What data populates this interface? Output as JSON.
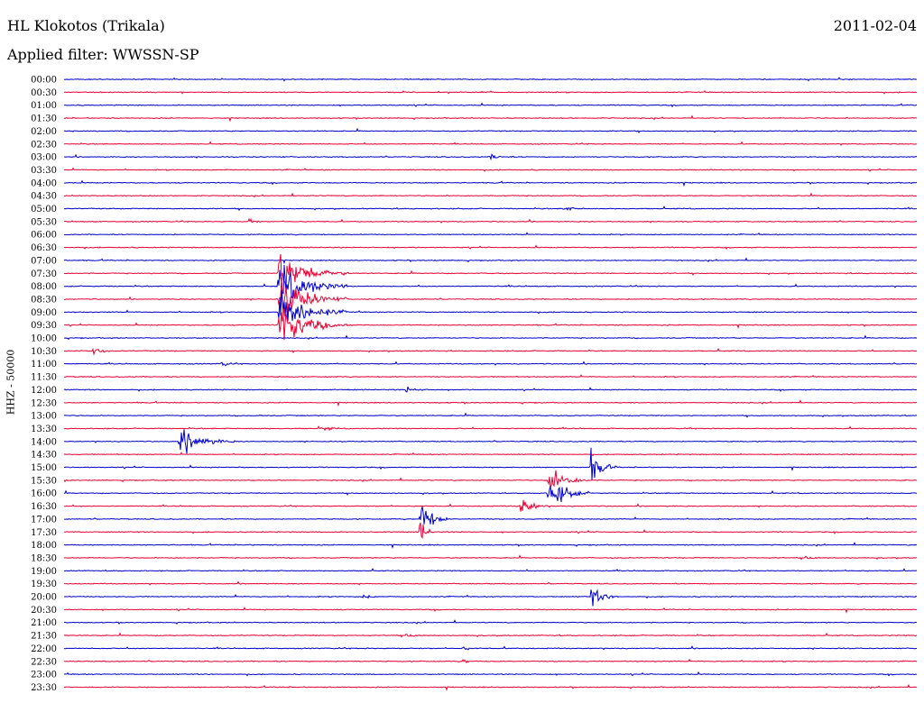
{
  "header": {
    "station": "HL Klokotos (Trikala)",
    "date": "2011-02-04",
    "filter": "Applied filter: WWSSN-SP",
    "channel": "HHZ - 50000"
  },
  "colors": {
    "even_hour": "#0000cc",
    "half_hour": "#ee0033",
    "background": "#ffffff"
  },
  "chart_data": {
    "type": "line",
    "title": "HL Klokotos (Trikala)",
    "date": "2011-02-04",
    "filter": "WWSSN-SP",
    "ylabel": "HHZ - 50000",
    "row_labels": [
      "00:00",
      "00:30",
      "01:00",
      "01:30",
      "02:00",
      "02:30",
      "03:00",
      "03:30",
      "04:00",
      "04:30",
      "05:00",
      "05:30",
      "06:00",
      "06:30",
      "07:00",
      "07:30",
      "08:00",
      "08:30",
      "09:00",
      "09:30",
      "10:00",
      "10:30",
      "11:00",
      "11:30",
      "12:00",
      "12:30",
      "13:00",
      "13:30",
      "14:00",
      "14:30",
      "15:00",
      "15:30",
      "16:00",
      "16:30",
      "17:00",
      "17:30",
      "18:00",
      "18:30",
      "19:00",
      "19:30",
      "20:00",
      "20:30",
      "21:00",
      "21:30",
      "22:00",
      "22:30",
      "23:00",
      "23:30"
    ],
    "row_minutes": 30,
    "events": [
      {
        "row": 15,
        "minute": 7.5,
        "amplitude": 1.0,
        "duration": 2.5
      },
      {
        "row": 16,
        "minute": 7.5,
        "amplitude": 1.0,
        "duration": 2.5
      },
      {
        "row": 17,
        "minute": 7.5,
        "amplitude": 1.0,
        "duration": 2.5
      },
      {
        "row": 18,
        "minute": 7.5,
        "amplitude": 1.0,
        "duration": 2.5
      },
      {
        "row": 19,
        "minute": 7.5,
        "amplitude": 1.0,
        "duration": 2.5
      },
      {
        "row": 28,
        "minute": 4.0,
        "amplitude": 0.6,
        "duration": 2.0
      },
      {
        "row": 30,
        "minute": 18.5,
        "amplitude": 0.7,
        "duration": 1.0
      },
      {
        "row": 31,
        "minute": 17.0,
        "amplitude": 0.7,
        "duration": 1.5
      },
      {
        "row": 32,
        "minute": 17.0,
        "amplitude": 0.8,
        "duration": 1.5
      },
      {
        "row": 33,
        "minute": 16.0,
        "amplitude": 0.5,
        "duration": 1.0
      },
      {
        "row": 34,
        "minute": 12.5,
        "amplitude": 1.0,
        "duration": 1.0
      },
      {
        "row": 35,
        "minute": 12.5,
        "amplitude": 0.8,
        "duration": 0.5
      },
      {
        "row": 40,
        "minute": 18.5,
        "amplitude": 0.5,
        "duration": 1.0
      },
      {
        "row": 6,
        "minute": 15.0,
        "amplitude": 0.15,
        "duration": 0.8
      },
      {
        "row": 10,
        "minute": 17.5,
        "amplitude": 0.15,
        "duration": 0.8
      },
      {
        "row": 11,
        "minute": 6.5,
        "amplitude": 0.25,
        "duration": 0.4
      },
      {
        "row": 21,
        "minute": 1.0,
        "amplitude": 0.25,
        "duration": 0.6
      },
      {
        "row": 22,
        "minute": 5.5,
        "amplitude": 0.15,
        "duration": 0.6
      },
      {
        "row": 24,
        "minute": 12.0,
        "amplitude": 0.15,
        "duration": 0.8
      },
      {
        "row": 27,
        "minute": 9.0,
        "amplitude": 0.12,
        "duration": 0.8
      },
      {
        "row": 37,
        "minute": 26.0,
        "amplitude": 0.15,
        "duration": 0.6
      },
      {
        "row": 40,
        "minute": 10.5,
        "amplitude": 0.12,
        "duration": 0.6
      },
      {
        "row": 43,
        "minute": 12.0,
        "amplitude": 0.1,
        "duration": 0.8
      },
      {
        "row": 44,
        "minute": 14.0,
        "amplitude": 0.1,
        "duration": 0.6
      },
      {
        "row": 45,
        "minute": 14.0,
        "amplitude": 0.1,
        "duration": 0.6
      }
    ]
  }
}
